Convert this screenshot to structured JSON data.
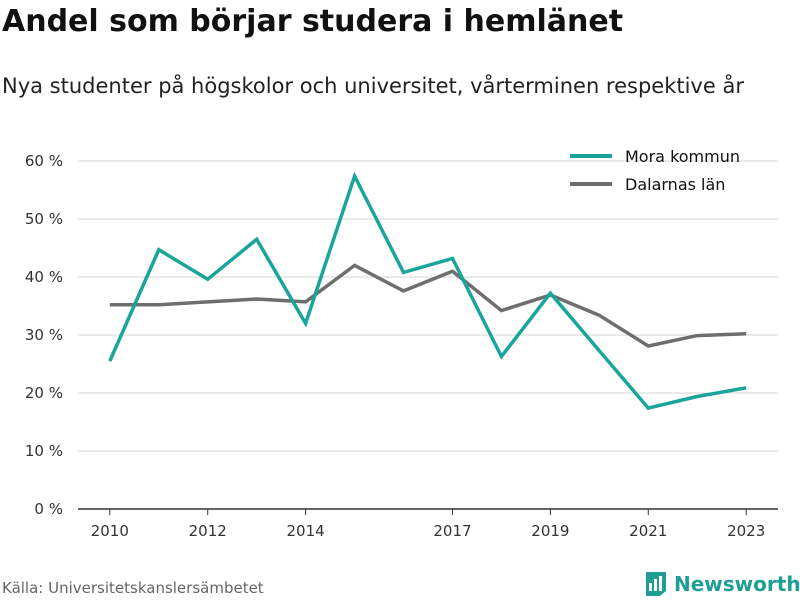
{
  "title": "Andel som börjar studera i hemlänet",
  "subtitle": "Nya studenter på högskolor och universitet, vårterminen respektive år",
  "source": "Källa: Universitetskanslersämbetet",
  "brand": {
    "name": "Newsworthy",
    "icon": "newsworthy-logo-icon"
  },
  "colors": {
    "mora": "#1aa59c",
    "dalarna": "#6e6e6e",
    "grid": "#d6d6d6",
    "brand": "#1f9e96"
  },
  "chart_data": {
    "type": "line",
    "title": "Andel som börjar studera i hemlänet",
    "xlabel": "",
    "ylabel": "",
    "x": [
      2010,
      2011,
      2012,
      2013,
      2014,
      2015,
      2016,
      2017,
      2018,
      2019,
      2020,
      2021,
      2022,
      2023
    ],
    "xticks": [
      2010,
      2012,
      2014,
      2017,
      2019,
      2021,
      2023
    ],
    "xtick_labels": [
      "2010",
      "2012",
      "2014",
      "2017",
      "2019",
      "2021",
      "2023"
    ],
    "yticks": [
      0,
      10,
      20,
      30,
      40,
      50,
      60
    ],
    "ytick_labels": [
      "0 %",
      "10 %",
      "20 %",
      "30 %",
      "40 %",
      "50 %",
      "60 %"
    ],
    "ylim": [
      0,
      60
    ],
    "grid": true,
    "legend_position": "top-right",
    "series": [
      {
        "name": "Mora kommun",
        "color": "#1aa59c",
        "values": [
          25.5,
          44.7,
          39.6,
          46.5,
          32.0,
          57.4,
          40.8,
          43.2,
          26.3,
          37.2,
          27.3,
          17.4,
          19.4,
          20.9
        ]
      },
      {
        "name": "Dalarnas län",
        "color": "#6e6e6e",
        "values": [
          35.2,
          35.2,
          35.7,
          36.2,
          35.7,
          42.0,
          37.6,
          41.0,
          34.2,
          36.9,
          33.4,
          28.1,
          29.9,
          30.2
        ]
      }
    ]
  }
}
